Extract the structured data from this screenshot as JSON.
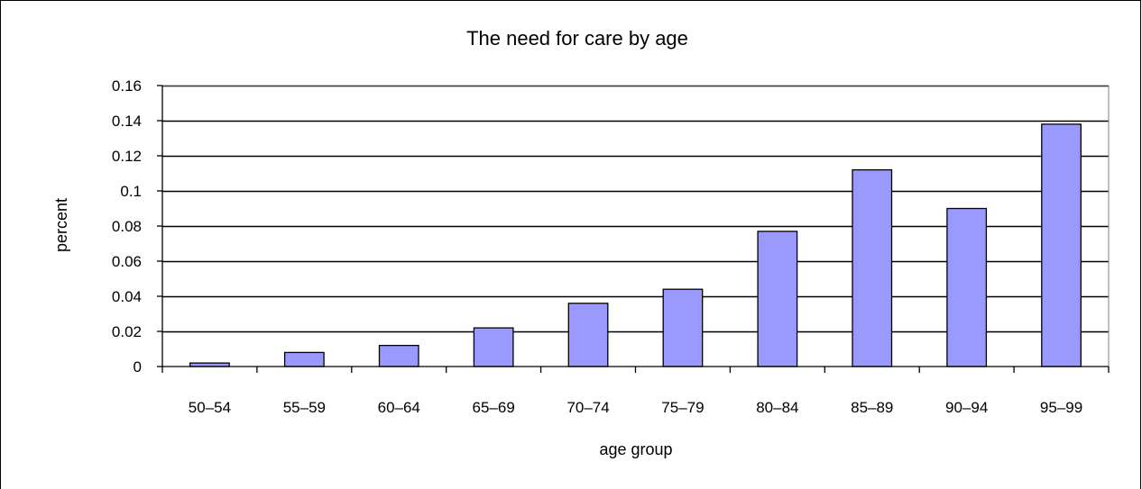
{
  "chart_data": {
    "type": "bar",
    "title": "The need for care by age",
    "xlabel": "age group",
    "ylabel": "percent",
    "categories": [
      "50–54",
      "55–59",
      "60–64",
      "65–69",
      "70–74",
      "75–79",
      "80–84",
      "85–89",
      "90–94",
      "95–99"
    ],
    "values": [
      0.002,
      0.008,
      0.012,
      0.022,
      0.036,
      0.044,
      0.077,
      0.112,
      0.09,
      0.138
    ],
    "ylim": [
      0,
      0.16
    ],
    "yticks": [
      0,
      0.02,
      0.04,
      0.06,
      0.08,
      0.1,
      0.12,
      0.14,
      0.16
    ],
    "ytick_labels": [
      "0",
      "0.02",
      "0.04",
      "0.06",
      "0.08",
      "0.1",
      "0.12",
      "0.14",
      "0.16"
    ],
    "grid": true,
    "legend": "none",
    "colors": {
      "bar_fill": "#9999ff",
      "bar_stroke": "#000000",
      "plot_background": "#ffffff",
      "plot_border": "#808080",
      "gridline": "#000000"
    }
  }
}
